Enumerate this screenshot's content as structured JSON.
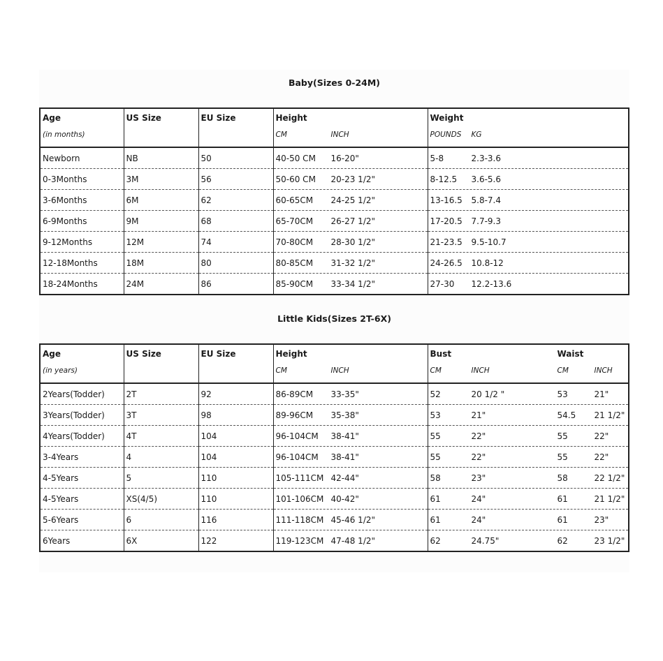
{
  "baby": {
    "title": "Baby(Sizes 0-24M)",
    "headers": {
      "age": "Age",
      "age_unit": "(in months)",
      "us": "US Size",
      "eu": "EU Size",
      "height": "Height",
      "cm": "CM",
      "inch": "INCH",
      "weight": "Weight",
      "pounds": "POUNDS",
      "kg": "KG"
    },
    "rows": [
      [
        "Newborn",
        "NB",
        "50",
        "40-50 CM",
        "16-20\"",
        "5-8",
        "2.3-3.6"
      ],
      [
        "0-3Months",
        "3M",
        "56",
        "50-60 CM",
        "20-23 1/2\"",
        "8-12.5",
        "3.6-5.6"
      ],
      [
        "3-6Months",
        "6M",
        "62",
        "60-65CM",
        "24-25 1/2\"",
        "13-16.5",
        "5.8-7.4"
      ],
      [
        "6-9Months",
        "9M",
        "68",
        "65-70CM",
        "26-27 1/2\"",
        "17-20.5",
        "7.7-9.3"
      ],
      [
        "9-12Months",
        "12M",
        "74",
        "70-80CM",
        "28-30 1/2\"",
        "21-23.5",
        "9.5-10.7"
      ],
      [
        "12-18Months",
        "18M",
        "80",
        "80-85CM",
        "31-32 1/2\"",
        "24-26.5",
        "10.8-12"
      ],
      [
        "18-24Months",
        "24M",
        "86",
        "85-90CM",
        "33-34 1/2\"",
        "27-30",
        "12.2-13.6"
      ]
    ]
  },
  "kids": {
    "title": "Little Kids(Sizes 2T-6X)",
    "headers": {
      "age": "Age",
      "age_unit": "(in years)",
      "us": "US Size",
      "eu": "EU Size",
      "height": "Height",
      "cm": "CM",
      "inch": "INCH",
      "bust": "Bust",
      "waist": "Waist"
    },
    "rows": [
      [
        "2Years(Todder)",
        "2T",
        "92",
        "86-89CM",
        "33-35\"",
        "52",
        "20 1/2 \"",
        "53",
        "21\""
      ],
      [
        "3Years(Todder)",
        "3T",
        "98",
        "89-96CM",
        "35-38\"",
        "53",
        "21\"",
        "54.5",
        "21 1/2\""
      ],
      [
        "4Years(Todder)",
        "4T",
        "104",
        "96-104CM",
        "38-41\"",
        "55",
        "22\"",
        "55",
        "22\""
      ],
      [
        "3-4Years",
        "4",
        "104",
        "96-104CM",
        "38-41\"",
        "55",
        "22\"",
        "55",
        "22\""
      ],
      [
        "4-5Years",
        "5",
        "110",
        "105-111CM",
        "42-44\"",
        "58",
        "23\"",
        "58",
        "22 1/2\""
      ],
      [
        "4-5Years",
        "XS(4/5)",
        "110",
        "101-106CM",
        "40-42\"",
        "61",
        "24\"",
        "61",
        "21 1/2\""
      ],
      [
        "5-6Years",
        "6",
        "116",
        "111-118CM",
        "45-46 1/2\"",
        "61",
        "24\"",
        "61",
        "23\""
      ],
      [
        "6Years",
        "6X",
        "122",
        "119-123CM",
        "47-48 1/2\"",
        "62",
        "24.75\"",
        "62",
        "23 1/2\""
      ]
    ]
  }
}
